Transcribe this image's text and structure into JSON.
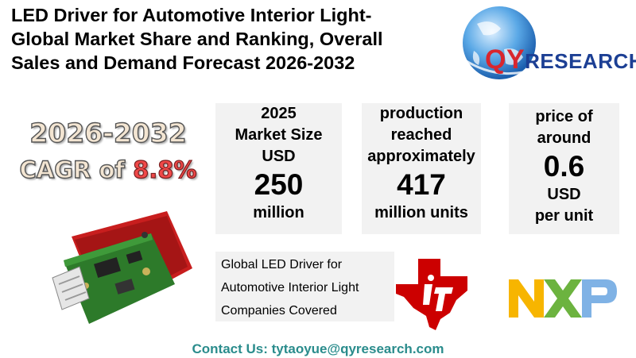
{
  "title": {
    "line1": "LED Driver for Automotive Interior Light-",
    "line2": "Global Market Share and Ranking, Overall",
    "line3": "Sales and Demand Forecast 2026-2032"
  },
  "logo": {
    "qy": "QY",
    "research": "RESEARCH"
  },
  "cagr": {
    "years": "2026-2032",
    "label": "CAGR of ",
    "value": "8.8%"
  },
  "card_market": {
    "l1": "2025",
    "l2": "Market Size",
    "l3": "USD",
    "value": "250",
    "unit": "million"
  },
  "card_production": {
    "l1": "production",
    "l2": "reached",
    "l3": "approximately",
    "value": "417",
    "unit": "million units"
  },
  "card_price": {
    "l1": "price of",
    "l2": "around",
    "value": "0.6",
    "l3": "USD",
    "unit": "per unit"
  },
  "companies": {
    "l1": "Global LED Driver for",
    "l2": "Automotive Interior Light",
    "l3": "Companies Covered"
  },
  "contact": "Contact Us: tytaoyue@qyresearch.com",
  "icons": [
    "globe-logo-icon",
    "led-driver-module-image",
    "ti-logo-icon",
    "nxp-logo-icon"
  ],
  "colors": {
    "qy_red": "#d8262e",
    "qy_blue": "#1c3f94",
    "cagr_pct": "#f04848",
    "contact": "#2a8c8c",
    "ti_red": "#cc0000"
  }
}
